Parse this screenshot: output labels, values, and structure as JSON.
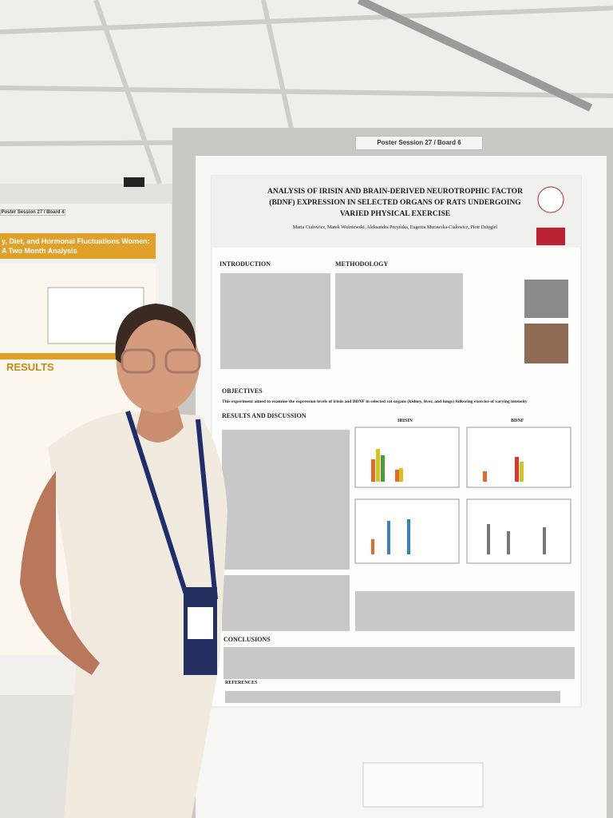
{
  "left_poster": {
    "board_label": "Poster Session 27 / Board 4",
    "title": "y, Diet, and Hormonal Fluctuations Women: A Two Month Analysis",
    "results_heading": "RESULTS"
  },
  "main_poster": {
    "board_label": "Poster Session 27 / Board 6",
    "title": "ANALYSIS OF IRISIN AND BRAIN-DERIVED NEUROTROPHIC FACTOR (BDNF) EXPRESSION IN SELECTED ORGANS OF RATS UNDERGOING VARIED PHYSICAL EXERCISE",
    "authors": "Maria Ciałowicz, Marek Woźniewski, Aleksandra Pecyńska, Eugenia Murawska-Ciałowicz, Piotr Dzięgiel",
    "introduction_heading": "INTRODUCTION",
    "methodology_heading": "METHODOLOGY",
    "objectives_heading": "OBJECTIVES",
    "objectives_text": "This experiment aimed to examine the expression levels of irisin and BDNF in selected rat organs (kidney, liver, and lungs) following exercise of varying intensity",
    "results_heading": "RESULTS AND DISCUSSION",
    "irisin_heading": "IRISIN",
    "bdnf_heading": "BDNF",
    "conclusions_heading": "CONCLUSIONS",
    "references_heading": "REFERENCES"
  }
}
